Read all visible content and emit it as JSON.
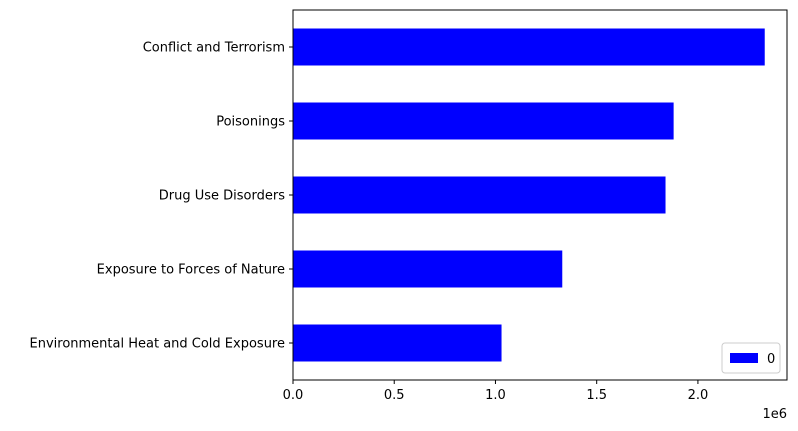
{
  "chart_data": {
    "type": "bar",
    "orientation": "horizontal",
    "categories": [
      "Environmental Heat and Cold Exposure",
      "Exposure to Forces of Nature",
      "Drug Use Disorders",
      "Poisonings",
      "Conflict and Terrorism"
    ],
    "series": [
      {
        "name": "0",
        "values": [
          1030000,
          1330000,
          1840000,
          1880000,
          2330000
        ],
        "color": "#0000ff"
      }
    ],
    "xlim": [
      0,
      2440000
    ],
    "xticks": [
      0,
      500000,
      1000000,
      1500000,
      2000000
    ],
    "xtick_labels": [
      "0.0",
      "0.5",
      "1.0",
      "1.5",
      "2.0"
    ],
    "x_offset_label": "1e6",
    "grid": false,
    "legend_placement": "lower-right"
  }
}
